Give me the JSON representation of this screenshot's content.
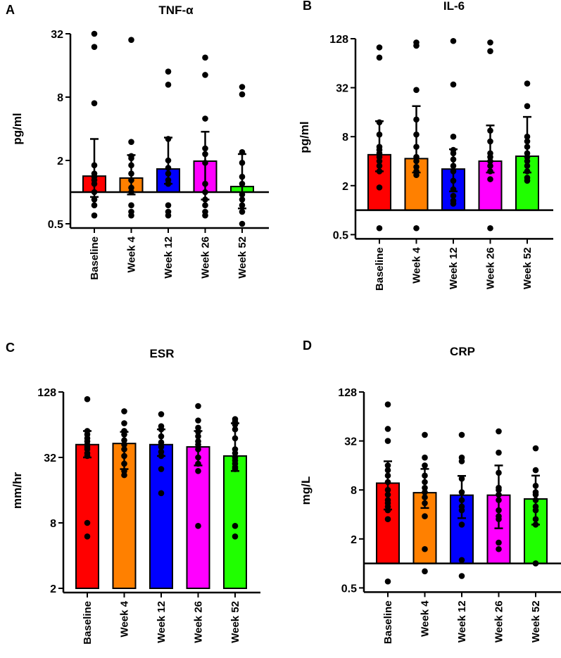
{
  "chart_data": [
    {
      "panel": "A",
      "type": "bar",
      "title": "TNF-α",
      "ylabel": "pg/ml",
      "yscale": "log2",
      "yticks": [
        "0.5",
        "2",
        "8",
        "32"
      ],
      "ylim": [
        0.5,
        32
      ],
      "bar_baseline": 1,
      "categories": [
        "Baseline",
        "Week 4",
        "Week 12",
        "Week 26",
        "Week 52"
      ],
      "colors": [
        "#ff0000",
        "#ff8000",
        "#0000ff",
        "#ff00ff",
        "#20ff00"
      ],
      "values": [
        1.42,
        1.36,
        1.66,
        1.97,
        1.13
      ],
      "error_low": [
        0.9,
        0.95,
        1.2,
        0.85,
        0.7
      ],
      "error_high": [
        3.2,
        2.25,
        3.3,
        3.75,
        2.3
      ],
      "points": [
        [
          32,
          24,
          7,
          1.8,
          1.5,
          1.4,
          1.3,
          1.2,
          1.0,
          0.85,
          0.75,
          0.6
        ],
        [
          28,
          3.0,
          2.2,
          2.1,
          1.8,
          1.5,
          1.3,
          1.1,
          1.0,
          0.75,
          0.65,
          0.6
        ],
        [
          14,
          10.5,
          3.2,
          2.0,
          1.7,
          1.5,
          1.3,
          1.2,
          0.75,
          0.65,
          0.6
        ],
        [
          19,
          13,
          5,
          2.6,
          2.3,
          1.9,
          1.2,
          1.0,
          0.85,
          0.75,
          0.65,
          0.6
        ],
        [
          10,
          8.5,
          2.4,
          1.9,
          1.4,
          1.2,
          0.95,
          0.85,
          0.75,
          0.65,
          0.5
        ]
      ]
    },
    {
      "panel": "B",
      "type": "bar",
      "title": "IL-6",
      "ylabel": "pg/ml",
      "yscale": "log2",
      "yticks": [
        "0.5",
        "2",
        "8",
        "32",
        "128"
      ],
      "ylim": [
        0.5,
        128
      ],
      "bar_baseline": 1,
      "categories": [
        "Baseline",
        "Week 4",
        "Week 12",
        "Week 26",
        "Week 52"
      ],
      "colors": [
        "#ff0000",
        "#ff8000",
        "#0000ff",
        "#ff00ff",
        "#20ff00"
      ],
      "values": [
        4.8,
        4.3,
        3.2,
        4.0,
        4.6
      ],
      "error_low": [
        3.0,
        2.9,
        1.7,
        2.9,
        2.9
      ],
      "error_high": [
        12.4,
        19,
        5.6,
        11,
        14
      ],
      "points": [
        [
          100,
          75,
          12,
          8.5,
          6,
          5.5,
          5,
          4.5,
          4,
          3.5,
          3,
          1.9,
          0.6
        ],
        [
          115,
          105,
          30,
          13,
          8.5,
          6,
          4.5,
          4,
          3.4,
          3.0,
          2.7,
          0.6
        ],
        [
          120,
          35,
          8,
          5.5,
          5,
          4.2,
          3.5,
          3,
          2.3,
          1.8,
          1.5,
          1.3,
          1.2
        ],
        [
          115,
          90,
          9.5,
          7,
          5,
          4.5,
          4,
          3.5,
          3,
          2.4,
          0.6
        ],
        [
          36,
          19,
          8,
          7,
          6,
          5,
          4.5,
          4,
          3.5,
          3,
          2.5,
          2.3
        ]
      ]
    },
    {
      "panel": "C",
      "type": "bar",
      "title": "ESR",
      "ylabel": "mm/hr",
      "yscale": "log2",
      "yticks": [
        "2",
        "8",
        "32",
        "128"
      ],
      "ylim": [
        2,
        128
      ],
      "bar_baseline": 2,
      "categories": [
        "Baseline",
        "Week 4",
        "Week 12",
        "Week 26",
        "Week 52"
      ],
      "colors": [
        "#ff0000",
        "#ff8000",
        "#0000ff",
        "#ff00ff",
        "#20ff00"
      ],
      "values": [
        42,
        43,
        42,
        40,
        33
      ],
      "error_low": [
        32,
        25,
        33,
        27,
        24
      ],
      "error_high": [
        56,
        55,
        58,
        56,
        66
      ],
      "points": [
        [
          110,
          56,
          52,
          48,
          45,
          42,
          40,
          38,
          35,
          33,
          8,
          6
        ],
        [
          85,
          66,
          56,
          52,
          46,
          42,
          38,
          33,
          28,
          24,
          22
        ],
        [
          80,
          62,
          58,
          50,
          44,
          40,
          36,
          33,
          25,
          15
        ],
        [
          95,
          70,
          60,
          55,
          50,
          45,
          42,
          38,
          32,
          28,
          24,
          7.5
        ],
        [
          72,
          68,
          64,
          58,
          48,
          38,
          35,
          32,
          30,
          28,
          26,
          25,
          7.5,
          6
        ]
      ]
    },
    {
      "panel": "D",
      "type": "bar",
      "title": "CRP",
      "ylabel": "mg/L",
      "yscale": "log2",
      "yticks": [
        "0.5",
        "2",
        "8",
        "32",
        "128"
      ],
      "ylim": [
        0.5,
        128
      ],
      "bar_baseline": 1,
      "categories": [
        "Baseline",
        "Week 4",
        "Week 12",
        "Week 26",
        "Week 52"
      ],
      "colors": [
        "#ff0000",
        "#ff8000",
        "#0000ff",
        "#ff00ff",
        "#20ff00"
      ],
      "values": [
        9.7,
        7.4,
        6.9,
        6.9,
        6.2
      ],
      "error_low": [
        4.6,
        4.8,
        3.6,
        2.7,
        3.0
      ],
      "error_high": [
        18,
        14.5,
        11.9,
        16,
        12
      ],
      "points": [
        [
          90,
          45,
          32,
          16,
          14,
          12,
          10,
          8,
          7,
          6,
          5.5,
          5,
          4.5,
          3.5,
          0.6
        ],
        [
          38,
          20,
          16,
          12,
          10,
          8.5,
          7.5,
          6.5,
          5.5,
          3.8,
          1.5,
          0.8
        ],
        [
          38,
          20,
          18,
          11,
          7.5,
          6,
          5,
          4.5,
          3,
          1.1,
          0.7
        ],
        [
          42,
          23,
          13,
          8.5,
          8,
          7,
          6,
          4.5,
          3.8,
          3.5,
          1.8,
          1.5
        ],
        [
          26,
          14,
          9,
          7.5,
          7,
          6,
          5,
          4.5,
          3.5,
          3,
          1.0
        ]
      ]
    }
  ]
}
